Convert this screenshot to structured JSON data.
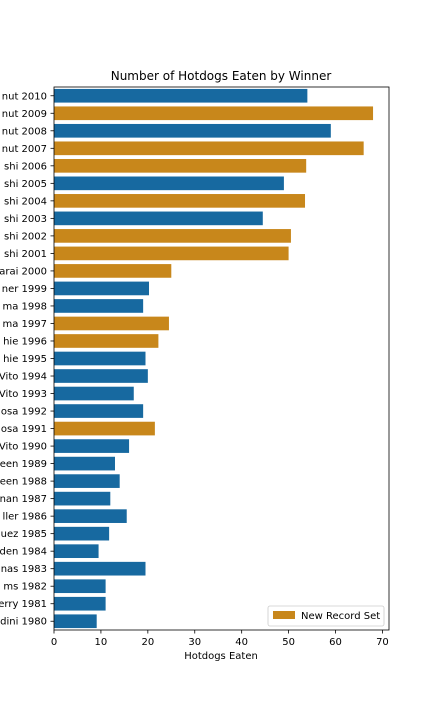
{
  "chart_data": {
    "type": "bar",
    "orientation": "horizontal",
    "title": "Number of Hotdogs Eaten by Winner",
    "xlabel": "Hotdogs Eaten",
    "ylabel": "",
    "xlim": [
      0,
      71.4
    ],
    "xticks": [
      0,
      10,
      20,
      30,
      40,
      50,
      60,
      70
    ],
    "grid": false,
    "legend": {
      "position": "lower-right",
      "entries": [
        {
          "label": "New Record Set",
          "color": "#c8871b"
        }
      ]
    },
    "colors": {
      "regular": "#1769a0",
      "record": "#c8871b"
    },
    "categories": [
      "nut 2010",
      "nut 2009",
      "nut 2008",
      "nut 2007",
      "shi 2006",
      "shi 2005",
      "shi 2004",
      "shi 2003",
      "shi 2002",
      "shi 2001",
      "arai 2000",
      "ner 1999",
      "ma 1998",
      "ma 1997",
      "hie 1996",
      "hie 1995",
      "Vito 1994",
      "Vito 1993",
      "osa 1992",
      "osa 1991",
      "Vito 1990",
      "een 1989",
      "een 1988",
      "nan 1987",
      "ller 1986",
      "uez 1985",
      "den 1984",
      "nas 1983",
      "ms 1982",
      "erry 1981",
      "dini 1980"
    ],
    "values": [
      54,
      68,
      59,
      66,
      53.75,
      49,
      53.5,
      44.5,
      50.5,
      50,
      25,
      20.25,
      19,
      24.5,
      22.25,
      19.5,
      20,
      17,
      19,
      21.5,
      16,
      13,
      14,
      12,
      15.5,
      11.75,
      9.5,
      19.5,
      11,
      11,
      9.1
    ],
    "new_record": [
      false,
      true,
      false,
      true,
      true,
      false,
      true,
      false,
      true,
      true,
      true,
      false,
      false,
      true,
      true,
      false,
      false,
      false,
      false,
      true,
      false,
      false,
      false,
      false,
      false,
      false,
      false,
      false,
      false,
      false,
      false
    ]
  }
}
